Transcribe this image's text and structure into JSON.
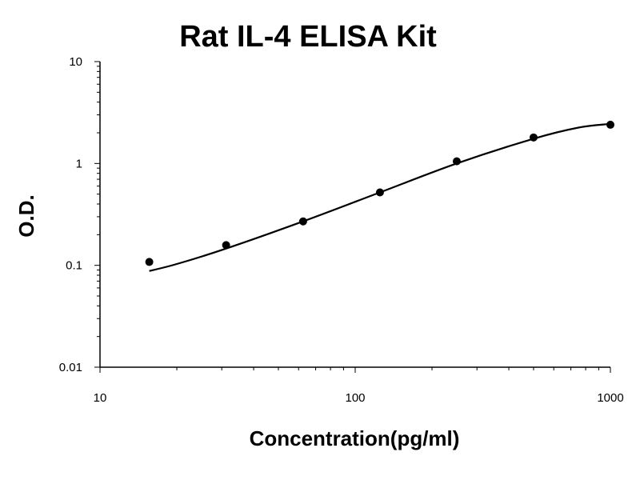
{
  "chart_data": {
    "type": "scatter",
    "title": "Rat IL-4 ELISA Kit",
    "xlabel": "Concentration(pg/ml)",
    "ylabel": "O.D.",
    "x_scale": "log",
    "y_scale": "log",
    "xlim": [
      10,
      1000
    ],
    "ylim": [
      0.01,
      10
    ],
    "x_ticks": [
      {
        "value": 10,
        "label": "10"
      },
      {
        "value": 100,
        "label": "100"
      },
      {
        "value": 1000,
        "label": "1000"
      }
    ],
    "y_ticks": [
      {
        "value": 0.01,
        "label": "0.01"
      },
      {
        "value": 0.1,
        "label": "0.1"
      },
      {
        "value": 1,
        "label": "1"
      },
      {
        "value": 10,
        "label": "10"
      }
    ],
    "grid": false,
    "legend": "none",
    "series": [
      {
        "points": [
          {
            "x": 15.6,
            "y": 0.108
          },
          {
            "x": 31.2,
            "y": 0.158
          },
          {
            "x": 62.5,
            "y": 0.27
          },
          {
            "x": 125,
            "y": 0.52
          },
          {
            "x": 250,
            "y": 1.05
          },
          {
            "x": 500,
            "y": 1.8
          },
          {
            "x": 1000,
            "y": 2.4
          }
        ],
        "fit_curve": [
          {
            "x": 15.6,
            "y": 0.088
          },
          {
            "x": 20,
            "y": 0.103
          },
          {
            "x": 31.2,
            "y": 0.146
          },
          {
            "x": 62.5,
            "y": 0.27
          },
          {
            "x": 125,
            "y": 0.52
          },
          {
            "x": 250,
            "y": 1.0
          },
          {
            "x": 500,
            "y": 1.75
          },
          {
            "x": 750,
            "y": 2.25
          },
          {
            "x": 1000,
            "y": 2.45
          }
        ],
        "color": "#000000"
      }
    ]
  }
}
